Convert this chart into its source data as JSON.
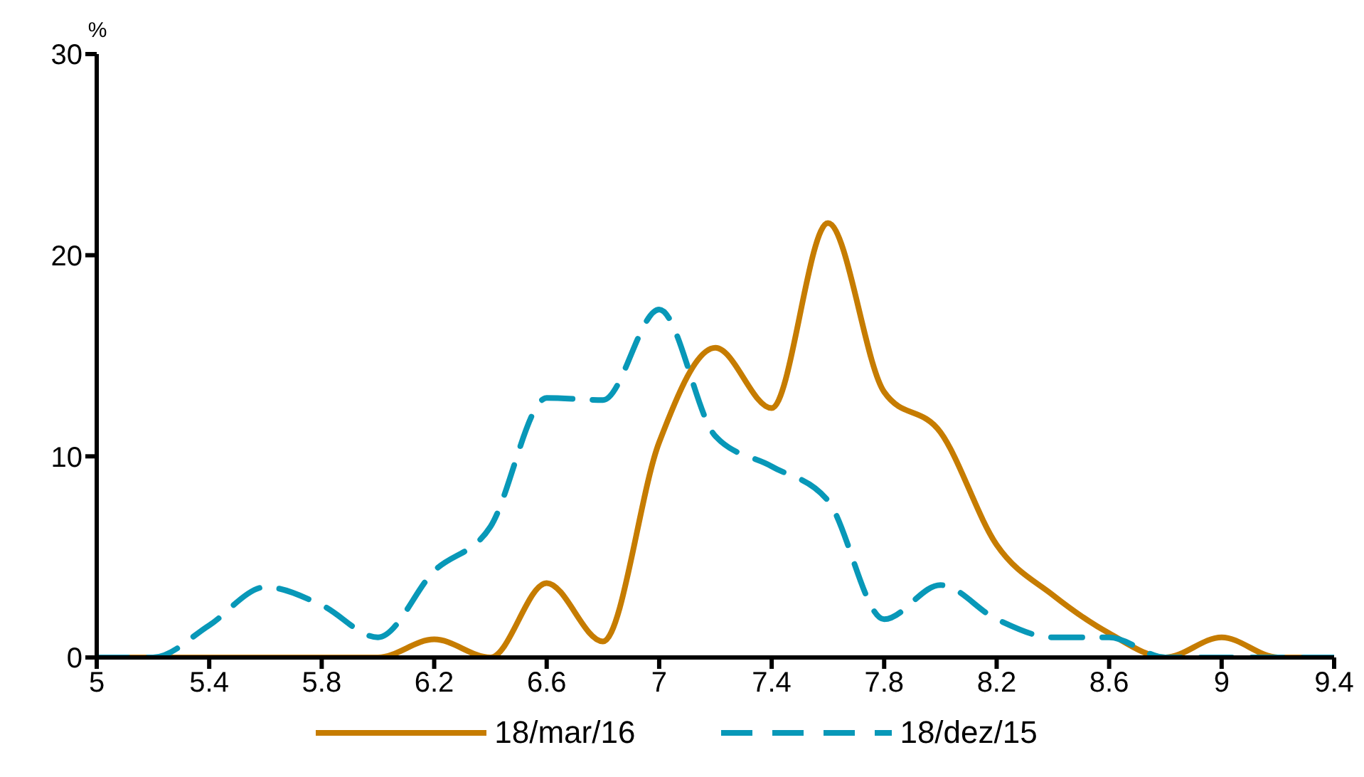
{
  "chart_data": {
    "type": "line",
    "ylabel": "%",
    "x": [
      5,
      5.2,
      5.4,
      5.6,
      5.8,
      6,
      6.2,
      6.4,
      6.6,
      6.8,
      7,
      7.2,
      7.4,
      7.6,
      7.8,
      8,
      8.2,
      8.4,
      8.6,
      8.8,
      9,
      9.2,
      9.4
    ],
    "series": [
      {
        "name": "18/mar/16",
        "color": "#c67c00",
        "line_style": "solid",
        "values": [
          0,
          0,
          0,
          0,
          0,
          0,
          0.9,
          0,
          3.7,
          0.8,
          10.7,
          15.4,
          12.4,
          21.6,
          13.2,
          11.2,
          5.6,
          3.1,
          1.2,
          0,
          1,
          0,
          0
        ]
      },
      {
        "name": "18/dez/15",
        "color": "#0898b8",
        "line_style": "dashed",
        "values": [
          0,
          0,
          1.6,
          3.5,
          2.6,
          1,
          4.3,
          6.5,
          12.9,
          12.8,
          17.3,
          11,
          9.5,
          7.8,
          1.9,
          3.6,
          1.9,
          1,
          1,
          0,
          0,
          0,
          0
        ]
      }
    ],
    "xlim": [
      5,
      9.4
    ],
    "xticks": [
      5,
      5.4,
      5.8,
      6.2,
      6.6,
      7,
      7.4,
      7.8,
      8.2,
      8.6,
      9,
      9.4
    ],
    "ylim": [
      0,
      30
    ],
    "yticks": [
      0,
      10,
      20,
      30
    ],
    "grid": false,
    "legend": "bottom",
    "marker": "none"
  }
}
